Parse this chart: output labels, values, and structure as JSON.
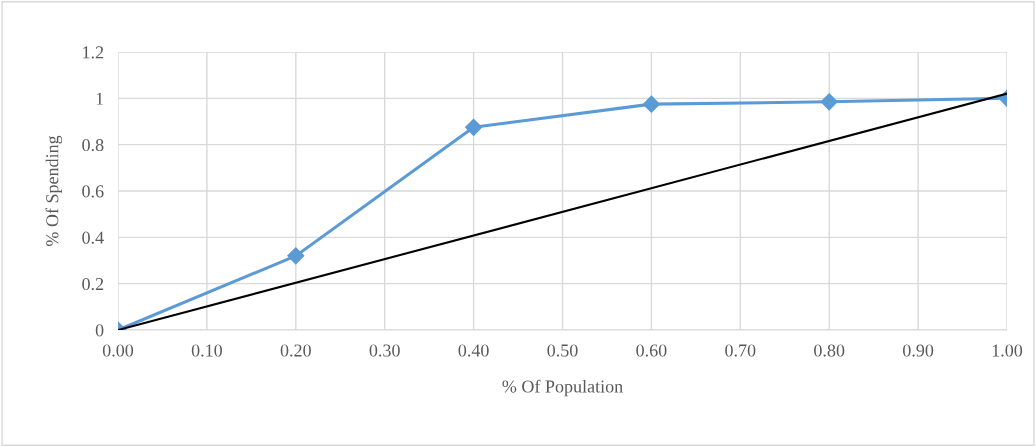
{
  "chart_data": {
    "type": "line",
    "xlabel": "% Of Population",
    "ylabel": "% Of Spending",
    "x": [
      0,
      0.2,
      0.4,
      0.6,
      0.8,
      1.0
    ],
    "series": [
      {
        "color": "#5b9bd5",
        "values": [
          0,
          0.32,
          0.875,
          0.975,
          0.985,
          1.0
        ],
        "marker": "diamond"
      },
      {
        "color": "#000000",
        "x": [
          0,
          1.0
        ],
        "values": [
          0,
          1.02
        ],
        "marker": "none"
      }
    ],
    "xlim": [
      0,
      1.0
    ],
    "ylim": [
      0,
      1.2
    ],
    "xticks": [
      {
        "value": 0,
        "label": "0.00"
      },
      {
        "value": 0.1,
        "label": "0.10"
      },
      {
        "value": 0.2,
        "label": "0.20"
      },
      {
        "value": 0.3,
        "label": "0.30"
      },
      {
        "value": 0.4,
        "label": "0.40"
      },
      {
        "value": 0.5,
        "label": "0.50"
      },
      {
        "value": 0.6,
        "label": "0.60"
      },
      {
        "value": 0.7,
        "label": "0.70"
      },
      {
        "value": 0.8,
        "label": "0.80"
      },
      {
        "value": 0.9,
        "label": "0.90"
      },
      {
        "value": 1.0,
        "label": "1.00"
      }
    ],
    "yticks": [
      0,
      0.2,
      0.4,
      0.6,
      0.8,
      1,
      1.2
    ],
    "grid": true,
    "legend": false,
    "line_style": "solid"
  }
}
